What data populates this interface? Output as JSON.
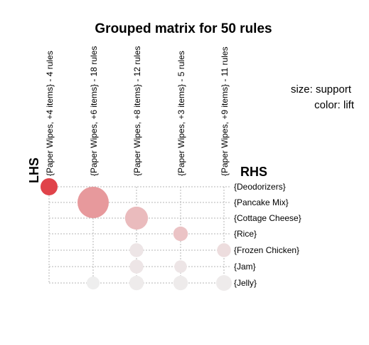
{
  "chart_data": {
    "type": "scatter",
    "title": "Grouped matrix for 50 rules",
    "xlabel": "LHS",
    "ylabel": "RHS",
    "lhs_groups": [
      "{Paper Wipes, +4 items} - 4 rules",
      "{Paper Wipes, +6 items} - 18 rules",
      "{Paper Wipes, +8 items} - 12 rules",
      "{Paper Wipes, +3 items} - 5 rules",
      "{Paper Wipes, +9 items} - 11 rules"
    ],
    "rhs_items": [
      "{Deodorizers}",
      "{Pancake Mix}",
      "{Cottage Cheese}",
      "{Rice}",
      "{Frozen Chicken}",
      "{Jam}",
      "{Jelly}"
    ],
    "legend": {
      "size": "size: support",
      "color": "color: lift",
      "placement": "top-right"
    },
    "color_scale": {
      "low": "#eeeeee",
      "high": "#e0434a"
    },
    "grid": true,
    "points": [
      {
        "lhs": 0,
        "rhs": 0,
        "support": 0.2,
        "lift": 1.0
      },
      {
        "lhs": 1,
        "rhs": 1,
        "support": 1.0,
        "lift": 0.5
      },
      {
        "lhs": 1,
        "rhs": 6,
        "support": 0.08,
        "lift": 0.0
      },
      {
        "lhs": 2,
        "rhs": 2,
        "support": 0.45,
        "lift": 0.3
      },
      {
        "lhs": 2,
        "rhs": 4,
        "support": 0.1,
        "lift": 0.05
      },
      {
        "lhs": 2,
        "rhs": 5,
        "support": 0.1,
        "lift": 0.05
      },
      {
        "lhs": 2,
        "rhs": 6,
        "support": 0.12,
        "lift": 0.02
      },
      {
        "lhs": 3,
        "rhs": 3,
        "support": 0.12,
        "lift": 0.25
      },
      {
        "lhs": 3,
        "rhs": 5,
        "support": 0.07,
        "lift": 0.05
      },
      {
        "lhs": 3,
        "rhs": 6,
        "support": 0.12,
        "lift": 0.02
      },
      {
        "lhs": 4,
        "rhs": 4,
        "support": 0.1,
        "lift": 0.1
      },
      {
        "lhs": 4,
        "rhs": 6,
        "support": 0.15,
        "lift": 0.02
      }
    ]
  }
}
